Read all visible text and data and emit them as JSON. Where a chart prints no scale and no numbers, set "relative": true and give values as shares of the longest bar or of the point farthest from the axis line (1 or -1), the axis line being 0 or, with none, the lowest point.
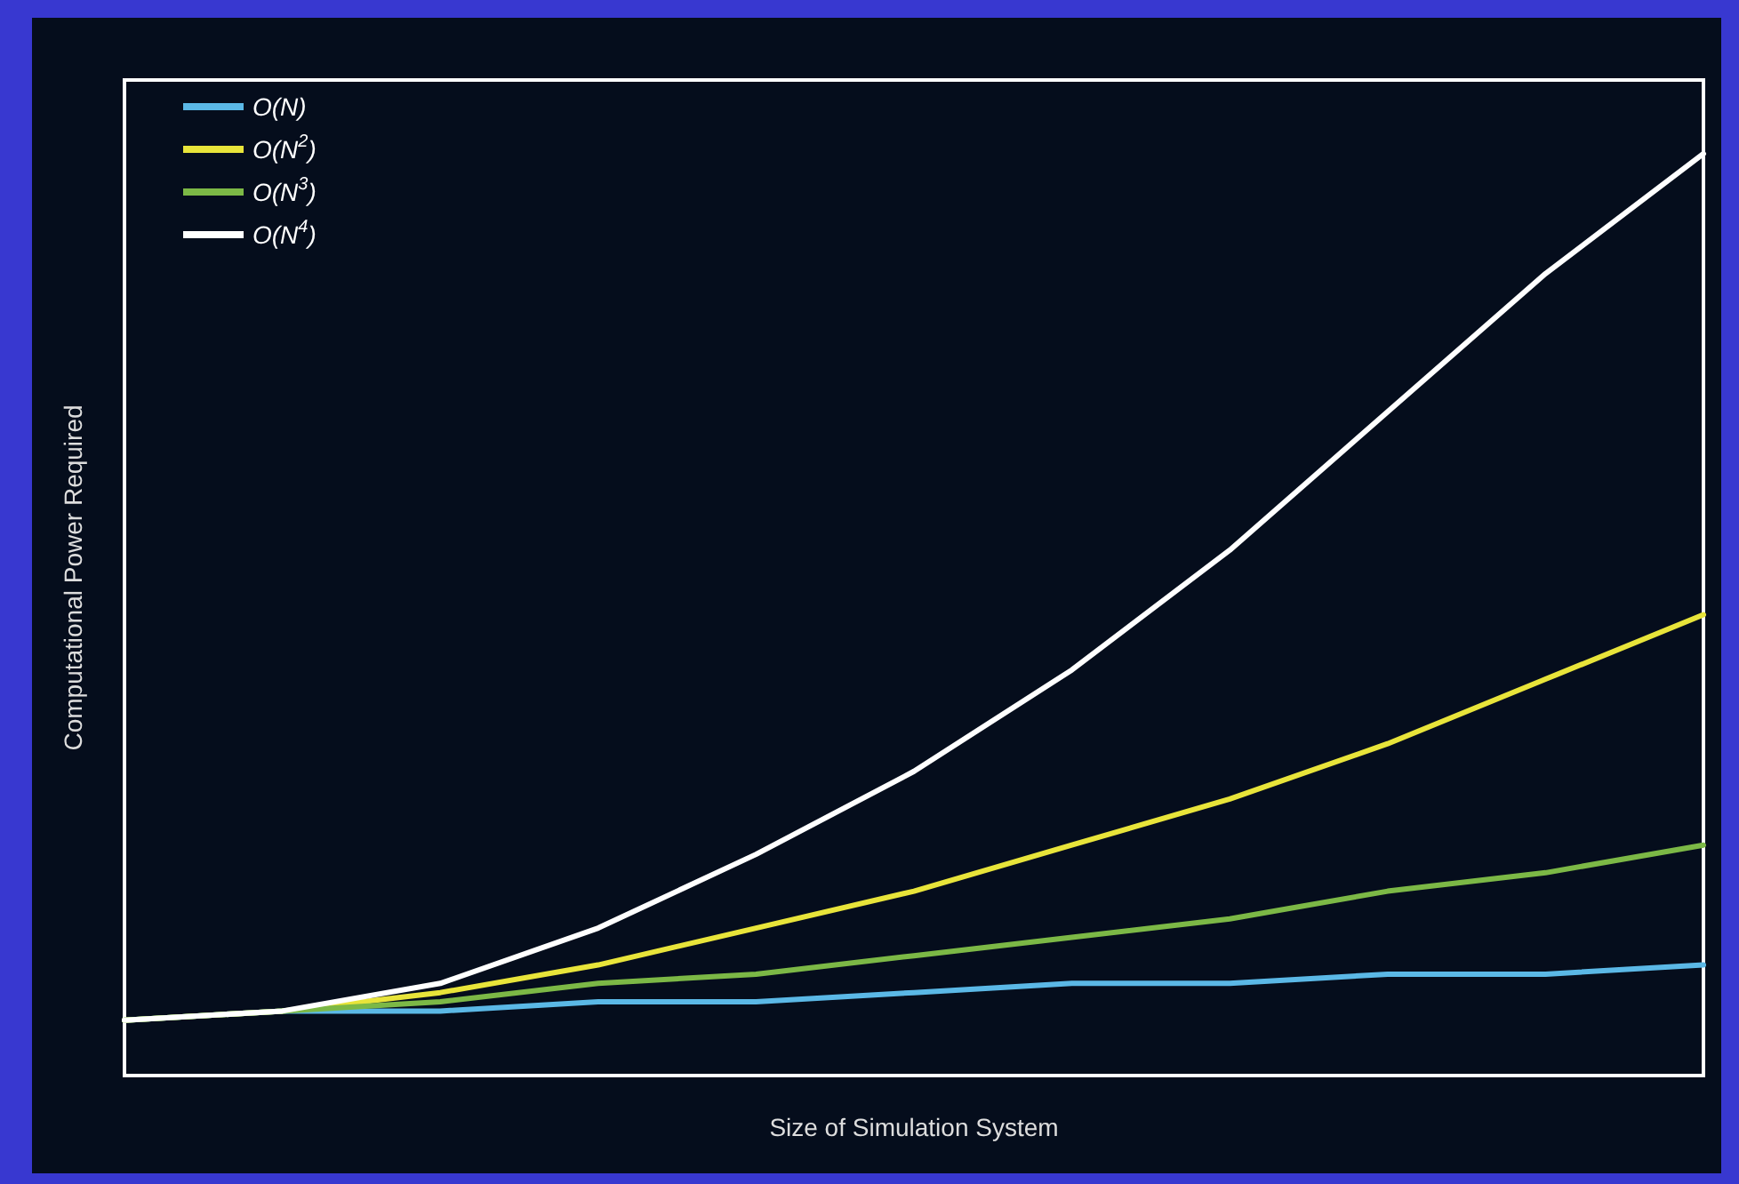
{
  "chart_data": {
    "type": "line",
    "relative": true,
    "xlabel": "Size of Simulation System",
    "ylabel": "Computational Power Required",
    "categories": [
      null,
      null,
      null,
      null,
      null,
      null,
      null,
      null,
      null,
      null,
      null
    ],
    "legend": "top left",
    "grid": false,
    "marker": "none",
    "line_style": "solid",
    "series": [
      {
        "name": "O(N)",
        "color": "#5bb8e6",
        "values": [
          0.06,
          0.07,
          0.07,
          0.08,
          0.08,
          0.09,
          0.1,
          0.1,
          0.11,
          0.11,
          0.12
        ]
      },
      {
        "name": "O(N$^{2}$)",
        "color": "#e8e43a",
        "values": [
          0.06,
          0.07,
          0.09,
          0.12,
          0.16,
          0.2,
          0.25,
          0.3,
          0.36,
          0.43,
          0.5
        ]
      },
      {
        "name": "O(N$^{3}$)",
        "color": "#7cb846",
        "values": [
          0.06,
          0.07,
          0.08,
          0.1,
          0.11,
          0.13,
          0.15,
          0.17,
          0.2,
          0.22,
          0.25
        ]
      },
      {
        "name": "O(N$^{4}$)",
        "color": "#ffffff",
        "values": [
          0.06,
          0.07,
          0.1,
          0.16,
          0.24,
          0.33,
          0.44,
          0.57,
          0.72,
          0.87,
          1.0
        ]
      }
    ]
  }
}
